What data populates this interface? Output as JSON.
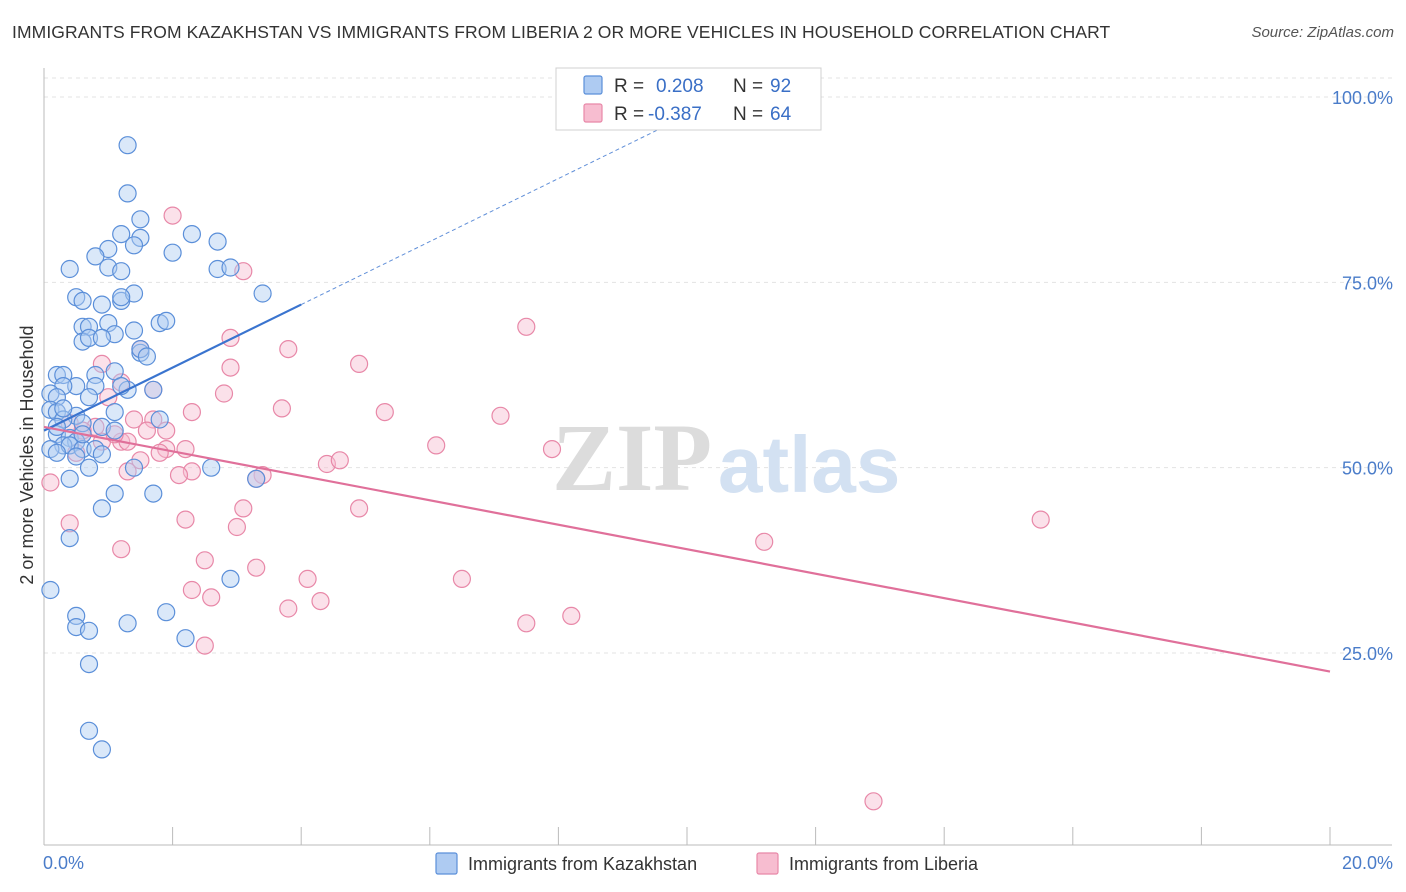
{
  "title": "IMMIGRANTS FROM KAZAKHSTAN VS IMMIGRANTS FROM LIBERIA 2 OR MORE VEHICLES IN HOUSEHOLD CORRELATION CHART",
  "source": "Source: ZipAtlas.com",
  "watermark": {
    "zip": "ZIP",
    "atlas": "atlas"
  },
  "colors": {
    "kazakhstan_fill": "#aecbf2",
    "kazakhstan_stroke": "#5b8fd9",
    "kazakhstan_line": "#3a74cf",
    "liberia_fill": "#f7bdd0",
    "liberia_stroke": "#e888a8",
    "liberia_line": "#e0709a",
    "axis_text": "#4a7cc9",
    "grid": "#e3e3e3"
  },
  "legend": {
    "r_label": "R =",
    "n_label": "N =",
    "rows": [
      {
        "series": "kazakhstan",
        "r": "0.208",
        "n": "92"
      },
      {
        "series": "liberia",
        "r": "-0.387",
        "n": "64"
      }
    ]
  },
  "chart_data": {
    "type": "scatter",
    "xlabel": "",
    "ylabel": "2 or more Vehicles in Household",
    "xlim": [
      0,
      20
    ],
    "ylim": [
      0,
      105
    ],
    "x_tick_labels": [
      {
        "value": 0,
        "label": "0.0%"
      },
      {
        "value": 20,
        "label": "20.0%"
      }
    ],
    "y_tick_labels": [
      {
        "value": 25,
        "label": "25.0%"
      },
      {
        "value": 50,
        "label": "50.0%"
      },
      {
        "value": 75,
        "label": "75.0%"
      },
      {
        "value": 100,
        "label": "100.0%"
      }
    ],
    "series": [
      {
        "name": "Immigrants from Kazakhstan",
        "key": "kazakhstan",
        "trend": {
          "x0": 0,
          "y0": 55.0,
          "x1": 4.0,
          "y1": 72.0,
          "dash_to_x": 10.0
        },
        "points": [
          [
            1.3,
            93.5
          ],
          [
            1.3,
            87.0
          ],
          [
            1.5,
            83.5
          ],
          [
            1.2,
            81.5
          ],
          [
            1.5,
            81.0
          ],
          [
            2.3,
            81.5
          ],
          [
            2.7,
            80.5
          ],
          [
            1.4,
            80.0
          ],
          [
            1.0,
            79.5
          ],
          [
            2.0,
            79.0
          ],
          [
            0.8,
            78.5
          ],
          [
            1.0,
            77.0
          ],
          [
            1.2,
            76.5
          ],
          [
            0.4,
            76.8
          ],
          [
            2.7,
            76.8
          ],
          [
            2.9,
            77.0
          ],
          [
            0.5,
            73.0
          ],
          [
            0.9,
            72.0
          ],
          [
            1.2,
            72.5
          ],
          [
            1.4,
            73.5
          ],
          [
            1.2,
            73.0
          ],
          [
            3.4,
            73.5
          ],
          [
            0.6,
            72.5
          ],
          [
            0.6,
            69.0
          ],
          [
            1.8,
            69.5
          ],
          [
            1.9,
            69.8
          ],
          [
            0.7,
            69.0
          ],
          [
            1.0,
            69.5
          ],
          [
            1.1,
            68.0
          ],
          [
            1.4,
            68.5
          ],
          [
            0.6,
            67.0
          ],
          [
            0.7,
            67.5
          ],
          [
            0.9,
            67.5
          ],
          [
            1.5,
            65.5
          ],
          [
            1.5,
            66.0
          ],
          [
            1.6,
            65.0
          ],
          [
            0.2,
            62.5
          ],
          [
            0.3,
            62.5
          ],
          [
            0.8,
            62.5
          ],
          [
            1.1,
            63.0
          ],
          [
            0.5,
            61.0
          ],
          [
            0.3,
            61.0
          ],
          [
            0.8,
            61.0
          ],
          [
            1.3,
            60.5
          ],
          [
            1.7,
            60.5
          ],
          [
            0.1,
            60.0
          ],
          [
            0.2,
            59.5
          ],
          [
            0.7,
            59.5
          ],
          [
            0.1,
            57.8
          ],
          [
            0.2,
            57.5
          ],
          [
            0.5,
            57.0
          ],
          [
            1.1,
            57.5
          ],
          [
            1.8,
            56.5
          ],
          [
            0.3,
            56.5
          ],
          [
            0.6,
            56.0
          ],
          [
            0.9,
            55.5
          ],
          [
            1.1,
            55.0
          ],
          [
            0.2,
            54.5
          ],
          [
            0.4,
            54.0
          ],
          [
            0.5,
            53.5
          ],
          [
            0.3,
            53.0
          ],
          [
            0.4,
            53.0
          ],
          [
            0.6,
            52.5
          ],
          [
            0.1,
            52.5
          ],
          [
            0.2,
            52.0
          ],
          [
            0.8,
            52.5
          ],
          [
            0.9,
            51.8
          ],
          [
            0.5,
            51.5
          ],
          [
            0.7,
            50.0
          ],
          [
            1.4,
            50.0
          ],
          [
            2.6,
            50.0
          ],
          [
            3.3,
            48.5
          ],
          [
            0.4,
            48.5
          ],
          [
            1.1,
            46.5
          ],
          [
            1.7,
            46.5
          ],
          [
            0.9,
            44.5
          ],
          [
            0.4,
            40.5
          ],
          [
            2.9,
            35.0
          ],
          [
            0.1,
            33.5
          ],
          [
            0.5,
            30.0
          ],
          [
            1.9,
            30.5
          ],
          [
            0.5,
            28.5
          ],
          [
            0.7,
            28.0
          ],
          [
            1.3,
            29.0
          ],
          [
            2.2,
            27.0
          ],
          [
            0.7,
            23.5
          ],
          [
            0.7,
            14.5
          ],
          [
            0.9,
            12.0
          ],
          [
            0.2,
            55.5
          ],
          [
            0.6,
            54.5
          ],
          [
            0.3,
            58.0
          ],
          [
            1.2,
            61.0
          ]
        ]
      },
      {
        "name": "Immigrants from Liberia",
        "key": "liberia",
        "trend": {
          "x0": 0,
          "y0": 55.5,
          "x1": 20.0,
          "y1": 22.5
        },
        "points": [
          [
            2.0,
            84.0
          ],
          [
            3.1,
            76.5
          ],
          [
            2.9,
            67.5
          ],
          [
            3.8,
            66.0
          ],
          [
            7.5,
            69.0
          ],
          [
            1.5,
            66.0
          ],
          [
            4.9,
            64.0
          ],
          [
            0.9,
            64.0
          ],
          [
            2.9,
            63.5
          ],
          [
            1.2,
            61.5
          ],
          [
            2.8,
            60.0
          ],
          [
            1.0,
            59.5
          ],
          [
            3.7,
            58.0
          ],
          [
            5.3,
            57.5
          ],
          [
            2.3,
            57.5
          ],
          [
            7.1,
            57.0
          ],
          [
            1.7,
            56.5
          ],
          [
            1.4,
            56.5
          ],
          [
            0.4,
            56.0
          ],
          [
            0.8,
            55.5
          ],
          [
            1.6,
            55.0
          ],
          [
            1.9,
            55.0
          ],
          [
            0.6,
            54.5
          ],
          [
            0.9,
            53.5
          ],
          [
            1.2,
            53.5
          ],
          [
            6.1,
            53.0
          ],
          [
            7.9,
            52.5
          ],
          [
            1.9,
            52.5
          ],
          [
            1.8,
            52.0
          ],
          [
            0.5,
            52.0
          ],
          [
            1.5,
            51.0
          ],
          [
            4.4,
            50.5
          ],
          [
            4.6,
            51.0
          ],
          [
            2.3,
            49.5
          ],
          [
            2.1,
            49.0
          ],
          [
            1.3,
            49.5
          ],
          [
            3.4,
            49.0
          ],
          [
            3.3,
            48.5
          ],
          [
            0.1,
            48.0
          ],
          [
            3.1,
            44.5
          ],
          [
            4.9,
            44.5
          ],
          [
            0.4,
            42.5
          ],
          [
            2.2,
            43.0
          ],
          [
            3.0,
            42.0
          ],
          [
            15.5,
            43.0
          ],
          [
            1.2,
            39.0
          ],
          [
            11.2,
            40.0
          ],
          [
            2.5,
            37.5
          ],
          [
            3.3,
            36.5
          ],
          [
            6.5,
            35.0
          ],
          [
            4.1,
            35.0
          ],
          [
            2.3,
            33.5
          ],
          [
            2.6,
            32.5
          ],
          [
            4.3,
            32.0
          ],
          [
            3.8,
            31.0
          ],
          [
            7.5,
            29.0
          ],
          [
            8.2,
            30.0
          ],
          [
            2.5,
            26.0
          ],
          [
            12.9,
            5.0
          ],
          [
            1.7,
            60.5
          ],
          [
            1.3,
            53.5
          ],
          [
            0.6,
            55.0
          ],
          [
            2.2,
            52.5
          ],
          [
            1.1,
            54.5
          ]
        ]
      }
    ]
  },
  "bottom_legend": [
    {
      "series": "kazakhstan",
      "label": "Immigrants from Kazakhstan"
    },
    {
      "series": "liberia",
      "label": "Immigrants from Liberia"
    }
  ]
}
